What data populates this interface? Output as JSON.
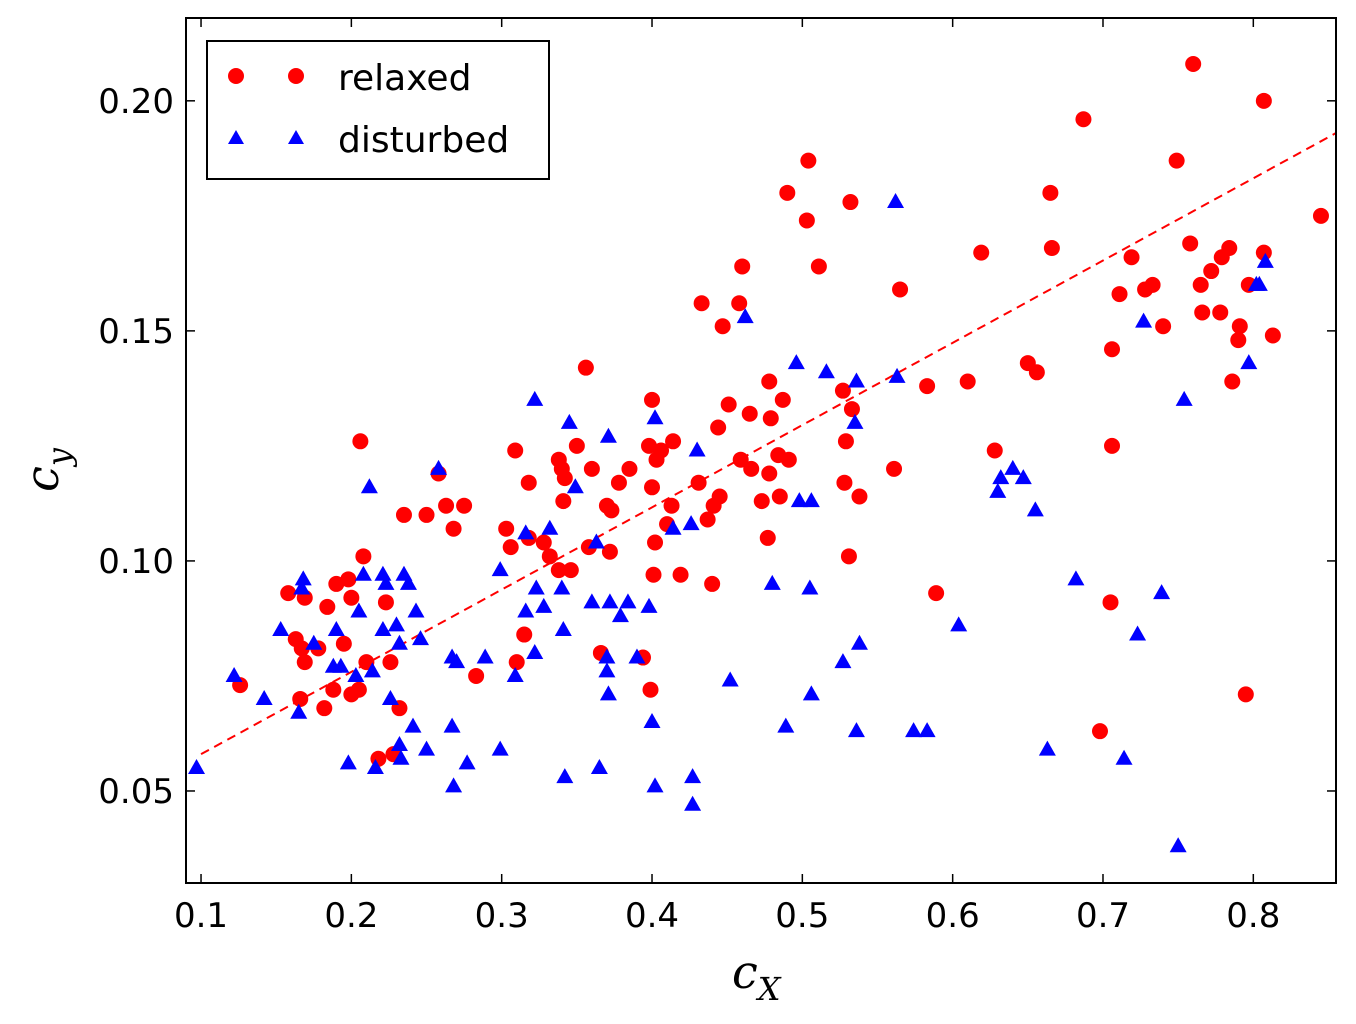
{
  "chart_data": {
    "type": "scatter",
    "xlabel": "c",
    "xlabel_sub": "X",
    "ylabel": "c",
    "ylabel_sub": "y",
    "xlim": [
      0.09,
      0.855
    ],
    "ylim": [
      0.03,
      0.218
    ],
    "xticks": [
      0.1,
      0.2,
      0.3,
      0.4,
      0.5,
      0.6,
      0.7,
      0.8
    ],
    "yticks": [
      0.05,
      0.1,
      0.15,
      0.2
    ],
    "xtick_labels": [
      "0.1",
      "0.2",
      "0.3",
      "0.4",
      "0.5",
      "0.6",
      "0.7",
      "0.8"
    ],
    "ytick_labels": [
      "0.05",
      "0.10",
      "0.15",
      "0.20"
    ],
    "grid": false,
    "legend_position": "top-left",
    "fit_line": {
      "style": "dashed",
      "color": "#ff0000",
      "points": [
        [
          0.1,
          0.058
        ],
        [
          0.855,
          0.193
        ]
      ]
    },
    "series": [
      {
        "name": "relaxed",
        "marker": "circle",
        "color": "#ff0000",
        "points": [
          [
            0.126,
            0.073
          ],
          [
            0.158,
            0.093
          ],
          [
            0.163,
            0.083
          ],
          [
            0.166,
            0.07
          ],
          [
            0.167,
            0.081
          ],
          [
            0.169,
            0.092
          ],
          [
            0.169,
            0.078
          ],
          [
            0.178,
            0.081
          ],
          [
            0.182,
            0.068
          ],
          [
            0.184,
            0.09
          ],
          [
            0.188,
            0.072
          ],
          [
            0.19,
            0.095
          ],
          [
            0.195,
            0.082
          ],
          [
            0.198,
            0.096
          ],
          [
            0.2,
            0.092
          ],
          [
            0.2,
            0.071
          ],
          [
            0.205,
            0.072
          ],
          [
            0.206,
            0.126
          ],
          [
            0.208,
            0.101
          ],
          [
            0.21,
            0.078
          ],
          [
            0.218,
            0.057
          ],
          [
            0.223,
            0.091
          ],
          [
            0.226,
            0.078
          ],
          [
            0.228,
            0.058
          ],
          [
            0.232,
            0.068
          ],
          [
            0.235,
            0.11
          ],
          [
            0.25,
            0.11
          ],
          [
            0.258,
            0.119
          ],
          [
            0.263,
            0.112
          ],
          [
            0.268,
            0.107
          ],
          [
            0.275,
            0.112
          ],
          [
            0.283,
            0.075
          ],
          [
            0.303,
            0.107
          ],
          [
            0.306,
            0.103
          ],
          [
            0.309,
            0.124
          ],
          [
            0.31,
            0.078
          ],
          [
            0.315,
            0.084
          ],
          [
            0.318,
            0.105
          ],
          [
            0.318,
            0.117
          ],
          [
            0.328,
            0.104
          ],
          [
            0.332,
            0.101
          ],
          [
            0.338,
            0.122
          ],
          [
            0.338,
            0.098
          ],
          [
            0.34,
            0.12
          ],
          [
            0.341,
            0.113
          ],
          [
            0.342,
            0.118
          ],
          [
            0.346,
            0.098
          ],
          [
            0.35,
            0.125
          ],
          [
            0.356,
            0.142
          ],
          [
            0.358,
            0.103
          ],
          [
            0.36,
            0.12
          ],
          [
            0.366,
            0.08
          ],
          [
            0.37,
            0.112
          ],
          [
            0.372,
            0.102
          ],
          [
            0.373,
            0.111
          ],
          [
            0.378,
            0.117
          ],
          [
            0.385,
            0.12
          ],
          [
            0.394,
            0.079
          ],
          [
            0.398,
            0.125
          ],
          [
            0.399,
            0.072
          ],
          [
            0.4,
            0.116
          ],
          [
            0.4,
            0.135
          ],
          [
            0.401,
            0.097
          ],
          [
            0.402,
            0.104
          ],
          [
            0.403,
            0.122
          ],
          [
            0.406,
            0.124
          ],
          [
            0.41,
            0.108
          ],
          [
            0.413,
            0.112
          ],
          [
            0.414,
            0.126
          ],
          [
            0.419,
            0.097
          ],
          [
            0.431,
            0.117
          ],
          [
            0.433,
            0.156
          ],
          [
            0.437,
            0.109
          ],
          [
            0.44,
            0.095
          ],
          [
            0.441,
            0.112
          ],
          [
            0.444,
            0.129
          ],
          [
            0.445,
            0.114
          ],
          [
            0.447,
            0.151
          ],
          [
            0.451,
            0.134
          ],
          [
            0.458,
            0.156
          ],
          [
            0.459,
            0.122
          ],
          [
            0.46,
            0.164
          ],
          [
            0.465,
            0.132
          ],
          [
            0.466,
            0.12
          ],
          [
            0.473,
            0.113
          ],
          [
            0.477,
            0.105
          ],
          [
            0.478,
            0.119
          ],
          [
            0.478,
            0.139
          ],
          [
            0.479,
            0.131
          ],
          [
            0.484,
            0.123
          ],
          [
            0.485,
            0.114
          ],
          [
            0.487,
            0.135
          ],
          [
            0.49,
            0.18
          ],
          [
            0.491,
            0.122
          ],
          [
            0.503,
            0.174
          ],
          [
            0.504,
            0.187
          ],
          [
            0.511,
            0.164
          ],
          [
            0.527,
            0.137
          ],
          [
            0.528,
            0.117
          ],
          [
            0.529,
            0.126
          ],
          [
            0.531,
            0.101
          ],
          [
            0.532,
            0.178
          ],
          [
            0.533,
            0.133
          ],
          [
            0.538,
            0.114
          ],
          [
            0.561,
            0.12
          ],
          [
            0.565,
            0.159
          ],
          [
            0.583,
            0.138
          ],
          [
            0.589,
            0.093
          ],
          [
            0.61,
            0.139
          ],
          [
            0.619,
            0.167
          ],
          [
            0.628,
            0.124
          ],
          [
            0.65,
            0.143
          ],
          [
            0.656,
            0.141
          ],
          [
            0.665,
            0.18
          ],
          [
            0.666,
            0.168
          ],
          [
            0.687,
            0.196
          ],
          [
            0.698,
            0.063
          ],
          [
            0.705,
            0.091
          ],
          [
            0.706,
            0.146
          ],
          [
            0.706,
            0.125
          ],
          [
            0.711,
            0.158
          ],
          [
            0.719,
            0.166
          ],
          [
            0.728,
            0.159
          ],
          [
            0.733,
            0.16
          ],
          [
            0.74,
            0.151
          ],
          [
            0.749,
            0.187
          ],
          [
            0.758,
            0.169
          ],
          [
            0.76,
            0.208
          ],
          [
            0.765,
            0.16
          ],
          [
            0.766,
            0.154
          ],
          [
            0.772,
            0.163
          ],
          [
            0.778,
            0.154
          ],
          [
            0.779,
            0.166
          ],
          [
            0.784,
            0.168
          ],
          [
            0.786,
            0.139
          ],
          [
            0.79,
            0.148
          ],
          [
            0.791,
            0.151
          ],
          [
            0.795,
            0.071
          ],
          [
            0.797,
            0.16
          ],
          [
            0.807,
            0.2
          ],
          [
            0.807,
            0.167
          ],
          [
            0.813,
            0.149
          ],
          [
            0.845,
            0.175
          ]
        ]
      },
      {
        "name": "disturbed",
        "marker": "triangle",
        "color": "#0000ff",
        "points": [
          [
            0.097,
            0.055
          ],
          [
            0.122,
            0.075
          ],
          [
            0.142,
            0.07
          ],
          [
            0.153,
            0.085
          ],
          [
            0.165,
            0.067
          ],
          [
            0.167,
            0.094
          ],
          [
            0.168,
            0.096
          ],
          [
            0.175,
            0.082
          ],
          [
            0.188,
            0.077
          ],
          [
            0.19,
            0.085
          ],
          [
            0.193,
            0.077
          ],
          [
            0.198,
            0.056
          ],
          [
            0.203,
            0.075
          ],
          [
            0.205,
            0.089
          ],
          [
            0.208,
            0.097
          ],
          [
            0.212,
            0.116
          ],
          [
            0.214,
            0.076
          ],
          [
            0.216,
            0.055
          ],
          [
            0.221,
            0.085
          ],
          [
            0.221,
            0.097
          ],
          [
            0.223,
            0.095
          ],
          [
            0.226,
            0.07
          ],
          [
            0.23,
            0.086
          ],
          [
            0.232,
            0.082
          ],
          [
            0.232,
            0.06
          ],
          [
            0.233,
            0.057
          ],
          [
            0.235,
            0.097
          ],
          [
            0.238,
            0.095
          ],
          [
            0.241,
            0.064
          ],
          [
            0.243,
            0.089
          ],
          [
            0.246,
            0.083
          ],
          [
            0.25,
            0.059
          ],
          [
            0.258,
            0.12
          ],
          [
            0.267,
            0.079
          ],
          [
            0.267,
            0.064
          ],
          [
            0.268,
            0.051
          ],
          [
            0.27,
            0.078
          ],
          [
            0.277,
            0.056
          ],
          [
            0.289,
            0.079
          ],
          [
            0.299,
            0.059
          ],
          [
            0.299,
            0.098
          ],
          [
            0.309,
            0.075
          ],
          [
            0.316,
            0.106
          ],
          [
            0.316,
            0.089
          ],
          [
            0.322,
            0.08
          ],
          [
            0.322,
            0.135
          ],
          [
            0.323,
            0.094
          ],
          [
            0.328,
            0.09
          ],
          [
            0.332,
            0.107
          ],
          [
            0.34,
            0.094
          ],
          [
            0.341,
            0.085
          ],
          [
            0.342,
            0.053
          ],
          [
            0.345,
            0.13
          ],
          [
            0.349,
            0.116
          ],
          [
            0.36,
            0.091
          ],
          [
            0.363,
            0.104
          ],
          [
            0.365,
            0.055
          ],
          [
            0.37,
            0.079
          ],
          [
            0.37,
            0.076
          ],
          [
            0.371,
            0.127
          ],
          [
            0.371,
            0.071
          ],
          [
            0.372,
            0.091
          ],
          [
            0.379,
            0.088
          ],
          [
            0.384,
            0.091
          ],
          [
            0.39,
            0.079
          ],
          [
            0.398,
            0.09
          ],
          [
            0.4,
            0.065
          ],
          [
            0.402,
            0.131
          ],
          [
            0.402,
            0.051
          ],
          [
            0.414,
            0.107
          ],
          [
            0.426,
            0.108
          ],
          [
            0.427,
            0.053
          ],
          [
            0.427,
            0.047
          ],
          [
            0.43,
            0.124
          ],
          [
            0.452,
            0.074
          ],
          [
            0.462,
            0.153
          ],
          [
            0.48,
            0.095
          ],
          [
            0.489,
            0.064
          ],
          [
            0.496,
            0.143
          ],
          [
            0.498,
            0.113
          ],
          [
            0.505,
            0.094
          ],
          [
            0.506,
            0.071
          ],
          [
            0.506,
            0.113
          ],
          [
            0.516,
            0.141
          ],
          [
            0.527,
            0.078
          ],
          [
            0.535,
            0.13
          ],
          [
            0.536,
            0.139
          ],
          [
            0.536,
            0.063
          ],
          [
            0.538,
            0.082
          ],
          [
            0.562,
            0.178
          ],
          [
            0.563,
            0.14
          ],
          [
            0.574,
            0.063
          ],
          [
            0.583,
            0.063
          ],
          [
            0.604,
            0.086
          ],
          [
            0.63,
            0.115
          ],
          [
            0.632,
            0.118
          ],
          [
            0.64,
            0.12
          ],
          [
            0.647,
            0.118
          ],
          [
            0.655,
            0.111
          ],
          [
            0.663,
            0.059
          ],
          [
            0.682,
            0.096
          ],
          [
            0.714,
            0.057
          ],
          [
            0.723,
            0.084
          ],
          [
            0.727,
            0.152
          ],
          [
            0.739,
            0.093
          ],
          [
            0.75,
            0.038
          ],
          [
            0.754,
            0.135
          ],
          [
            0.797,
            0.143
          ],
          [
            0.802,
            0.16
          ],
          [
            0.804,
            0.16
          ],
          [
            0.808,
            0.165
          ]
        ]
      }
    ]
  }
}
